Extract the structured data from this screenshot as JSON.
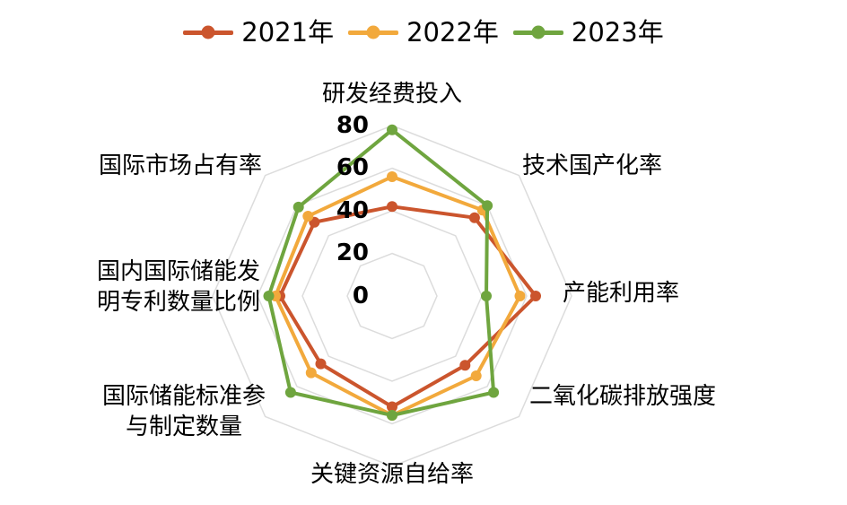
{
  "chart_data": {
    "type": "radar",
    "title": "",
    "min": 0,
    "max": 80,
    "grid_rings": [
      20,
      40,
      60,
      80
    ],
    "tick_labels": [
      "80",
      "60",
      "40",
      "20",
      "0"
    ],
    "grid_color": "#DCDCDC",
    "legend_position": "top",
    "background": "#FFFFFF",
    "categories": [
      "研发经费投入",
      "技术国产化率",
      "产能利用率",
      "二氧化碳排放强度",
      "关键资源自给率",
      "国际储能标准参与制定数量",
      "国内国际储能发明专利数量比例",
      "国际市场占有率"
    ],
    "series": [
      {
        "name": "2021年",
        "color": "#CB552D",
        "values": [
          42,
          52,
          64,
          46,
          52,
          45,
          50,
          49
        ]
      },
      {
        "name": "2022年",
        "color": "#F2A93C",
        "values": [
          56,
          57,
          57,
          53,
          56,
          51,
          52,
          53
        ]
      },
      {
        "name": "2023年",
        "color": "#6FA53F",
        "values": [
          78,
          60,
          42,
          64,
          56,
          64,
          55,
          59
        ]
      }
    ]
  }
}
